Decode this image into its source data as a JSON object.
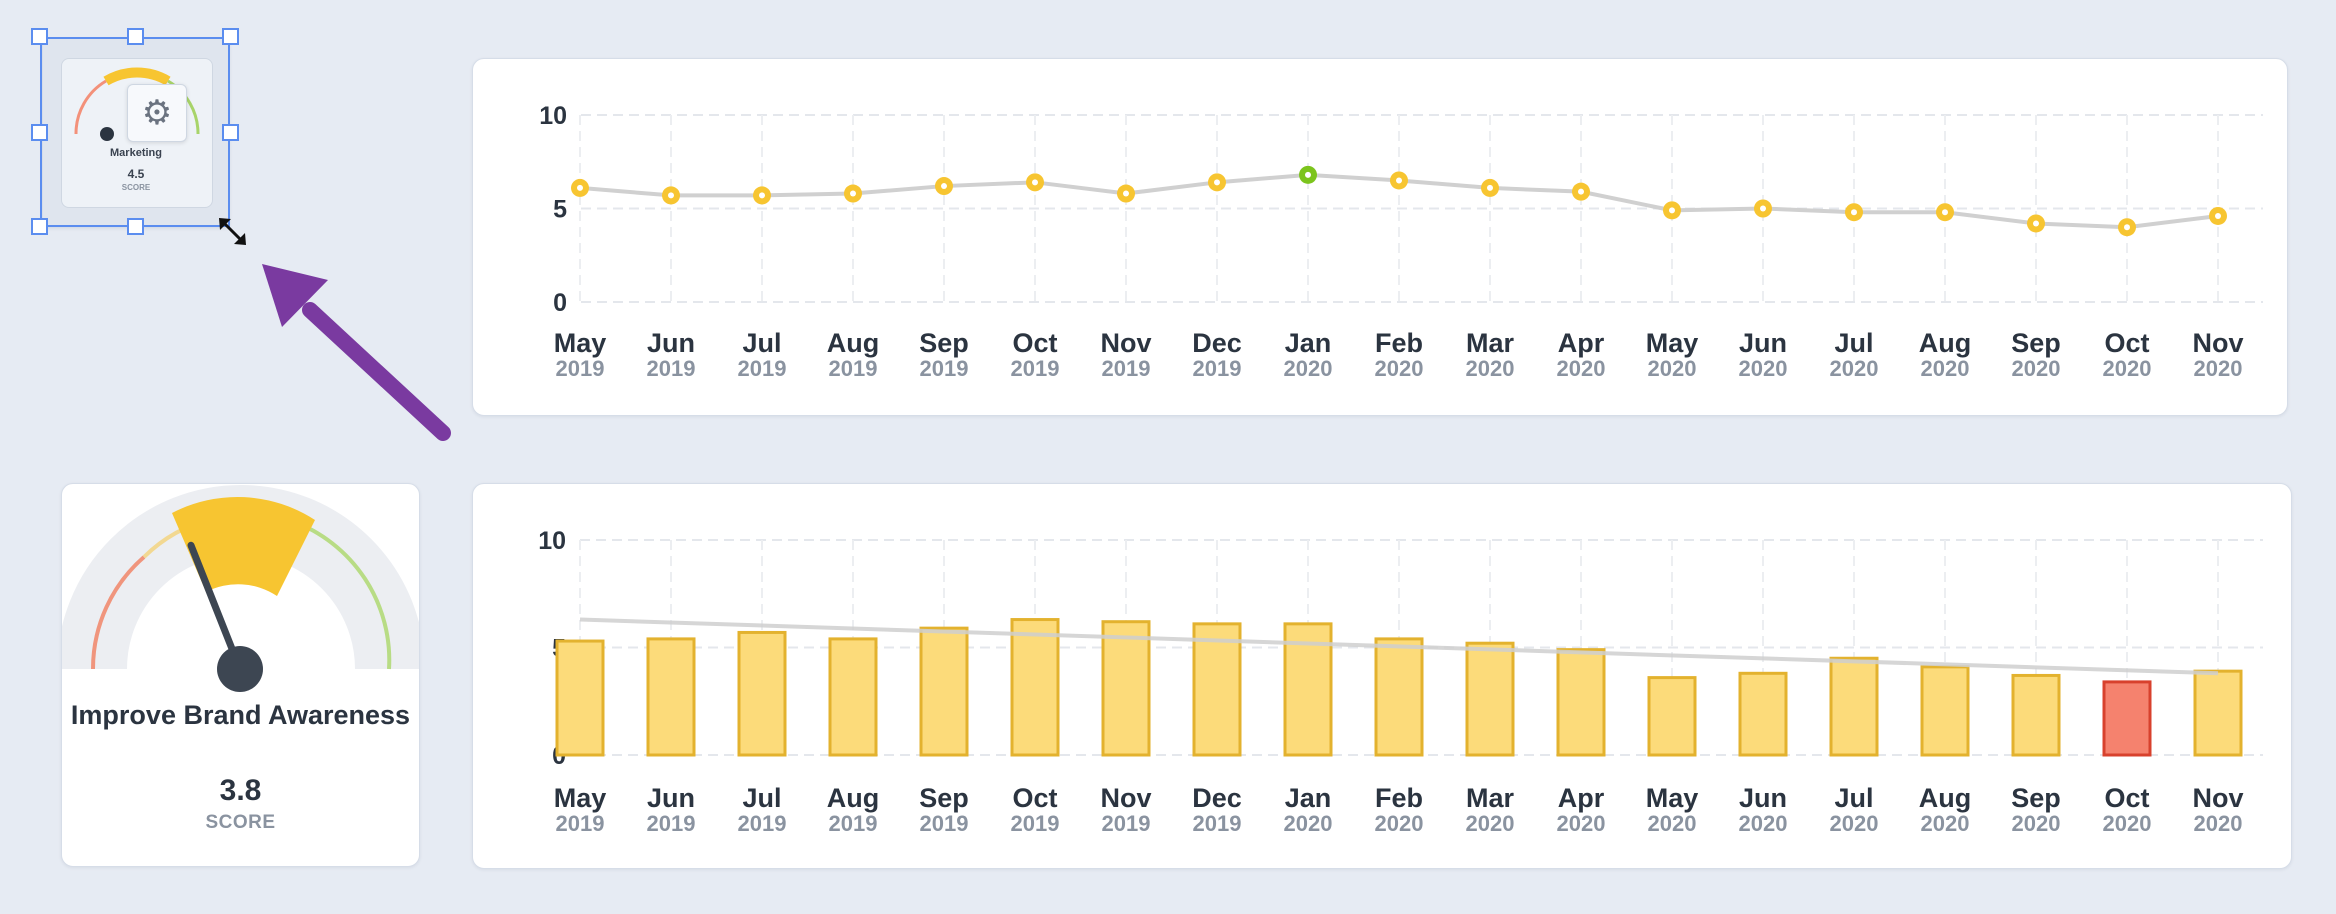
{
  "selected_widget": {
    "name": "Marketing",
    "score": "4.5",
    "score_label": "SCORE",
    "gear_icon": "gear-icon"
  },
  "score_card": {
    "title": "Improve Brand Awareness",
    "score": "3.8",
    "score_label": "SCORE",
    "needle_value": 3.8
  },
  "colors": {
    "yellow": "#f7c531",
    "bar_fill": "#fcdb7a",
    "bar_border": "#e3b22e",
    "green": "#7cc41d",
    "red_fill": "#f5826e",
    "red_border": "#d8412d",
    "arrow": "#7a3aa0",
    "selection": "#5b8def",
    "trend": "#cfcfcf"
  },
  "chart_data": [
    {
      "type": "line",
      "categories": [
        "May 2019",
        "Jun 2019",
        "Jul 2019",
        "Aug 2019",
        "Sep 2019",
        "Oct 2019",
        "Nov 2019",
        "Dec 2019",
        "Jan 2020",
        "Feb 2020",
        "Mar 2020",
        "Apr 2020",
        "May 2020",
        "Jun 2020",
        "Jul 2020",
        "Aug 2020",
        "Sep 2020",
        "Oct 2020",
        "Nov 2020"
      ],
      "months": [
        "May",
        "Jun",
        "Jul",
        "Aug",
        "Sep",
        "Oct",
        "Nov",
        "Dec",
        "Jan",
        "Feb",
        "Mar",
        "Apr",
        "May",
        "Jun",
        "Jul",
        "Aug",
        "Sep",
        "Oct",
        "Nov"
      ],
      "years": [
        "2019",
        "2019",
        "2019",
        "2019",
        "2019",
        "2019",
        "2019",
        "2019",
        "2020",
        "2020",
        "2020",
        "2020",
        "2020",
        "2020",
        "2020",
        "2020",
        "2020",
        "2020",
        "2020"
      ],
      "values": [
        6.1,
        5.7,
        5.7,
        5.8,
        6.2,
        6.4,
        5.8,
        6.4,
        6.8,
        6.5,
        6.1,
        5.9,
        4.9,
        5.0,
        4.8,
        4.8,
        4.2,
        4.0,
        4.6
      ],
      "highlight_index": 8,
      "ylim": [
        0,
        10
      ],
      "yticks": [
        "0",
        "5",
        "10"
      ],
      "grid": true
    },
    {
      "type": "bar",
      "categories": [
        "May 2019",
        "Jun 2019",
        "Jul 2019",
        "Aug 2019",
        "Sep 2019",
        "Oct 2019",
        "Nov 2019",
        "Dec 2019",
        "Jan 2020",
        "Feb 2020",
        "Mar 2020",
        "Apr 2020",
        "May 2020",
        "Jun 2020",
        "Jul 2020",
        "Aug 2020",
        "Sep 2020",
        "Oct 2020",
        "Nov 2020"
      ],
      "months": [
        "May",
        "Jun",
        "Jul",
        "Aug",
        "Sep",
        "Oct",
        "Nov",
        "Dec",
        "Jan",
        "Feb",
        "Mar",
        "Apr",
        "May",
        "Jun",
        "Jul",
        "Aug",
        "Sep",
        "Oct",
        "Nov"
      ],
      "years": [
        "2019",
        "2019",
        "2019",
        "2019",
        "2019",
        "2019",
        "2019",
        "2019",
        "2020",
        "2020",
        "2020",
        "2020",
        "2020",
        "2020",
        "2020",
        "2020",
        "2020",
        "2020",
        "2020"
      ],
      "values": [
        5.3,
        5.4,
        5.7,
        5.4,
        5.9,
        6.3,
        6.2,
        6.1,
        6.1,
        5.4,
        5.2,
        4.9,
        3.6,
        3.8,
        4.5,
        4.1,
        3.7,
        3.4,
        3.9
      ],
      "highlight_index": 17,
      "trend": [
        6.3,
        3.8
      ],
      "ylim": [
        0,
        10
      ],
      "yticks": [
        "0",
        "5",
        "10"
      ],
      "grid": true
    }
  ]
}
